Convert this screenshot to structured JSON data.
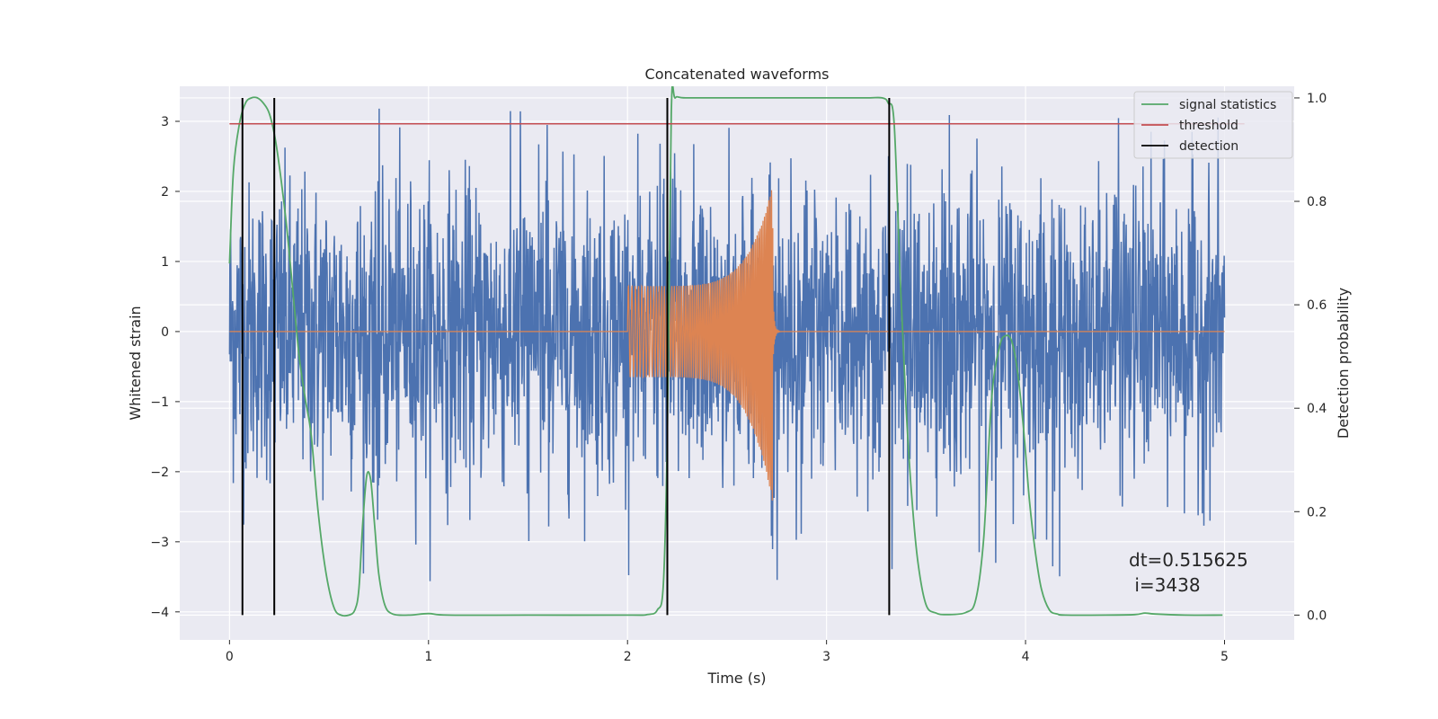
{
  "chart_data": {
    "type": "line",
    "title": "Concatenated waveforms",
    "xlabel": "Time (s)",
    "ylabel": "Whitened strain",
    "y2label": "Detection probability",
    "xlim": [
      -0.25,
      5.35
    ],
    "ylim": [
      -4.4,
      3.5
    ],
    "y2lim": [
      -0.048,
      1.0225
    ],
    "x_ticks": [
      0,
      1,
      2,
      3,
      4,
      5
    ],
    "x_tick_labels": [
      "0",
      "1",
      "2",
      "3",
      "4",
      "5"
    ],
    "y_ticks": [
      -4,
      -3,
      -2,
      -1,
      0,
      1,
      2,
      3
    ],
    "y_tick_labels": [
      "−4",
      "−3",
      "−2",
      "−1",
      "0",
      "1",
      "2",
      "3"
    ],
    "y2_ticks": [
      0.0,
      0.2,
      0.4,
      0.6,
      0.8,
      1.0
    ],
    "y2_tick_labels": [
      "0.0",
      "0.2",
      "0.4",
      "0.6",
      "0.8",
      "1.0"
    ],
    "grid": true,
    "legend_position": "top-right",
    "series": [
      {
        "name": "",
        "axis": "left",
        "kind": "noise",
        "color": "#4C72B0",
        "x_range": [
          0,
          5
        ],
        "amplitude_range": [
          -3.6,
          3.2
        ]
      },
      {
        "name": "",
        "axis": "left",
        "kind": "chirp",
        "color": "#DD8452",
        "x_range": [
          0,
          5
        ],
        "chirp_start": 2.0,
        "chirp_end": 2.73,
        "amplitude_start": 0.65,
        "amplitude_peak": 2.1,
        "amplitude_min_peak": -2.45
      },
      {
        "name": "signal statistics",
        "axis": "right",
        "color": "#55A868",
        "x": [
          0.0,
          0.02,
          0.05,
          0.08,
          0.11,
          0.14,
          0.17,
          0.2,
          0.23,
          0.26,
          0.29,
          0.32,
          0.35,
          0.38,
          0.41,
          0.44,
          0.47,
          0.5,
          0.53,
          0.56,
          0.6,
          0.63,
          0.65,
          0.67,
          0.69,
          0.71,
          0.73,
          0.75,
          0.78,
          0.82,
          0.9,
          1.0,
          1.1,
          1.5,
          2.0,
          2.1,
          2.15,
          2.18,
          2.2,
          2.22,
          2.24,
          2.3,
          2.6,
          3.0,
          3.2,
          3.28,
          3.31,
          3.34,
          3.37,
          3.4,
          3.43,
          3.46,
          3.5,
          3.55,
          3.6,
          3.7,
          3.75,
          3.79,
          3.83,
          3.87,
          3.9,
          3.93,
          3.96,
          3.99,
          4.02,
          4.05,
          4.08,
          4.12,
          4.16,
          4.2,
          4.4,
          4.55,
          4.6,
          4.65,
          4.8,
          4.99
        ],
        "values": [
          0.68,
          0.86,
          0.95,
          0.99,
          1.0,
          1.0,
          0.99,
          0.97,
          0.92,
          0.84,
          0.74,
          0.62,
          0.5,
          0.42,
          0.35,
          0.22,
          0.12,
          0.05,
          0.01,
          0.0,
          0.0,
          0.01,
          0.05,
          0.18,
          0.27,
          0.26,
          0.17,
          0.08,
          0.02,
          0.002,
          0.0,
          0.003,
          0.0,
          0.0,
          0.0,
          0.001,
          0.01,
          0.06,
          0.35,
          0.97,
          1.0,
          1.0,
          1.0,
          1.0,
          1.0,
          1.0,
          0.99,
          0.95,
          0.65,
          0.4,
          0.22,
          0.1,
          0.02,
          0.004,
          0.001,
          0.005,
          0.03,
          0.15,
          0.42,
          0.52,
          0.54,
          0.53,
          0.47,
          0.36,
          0.22,
          0.12,
          0.05,
          0.01,
          0.002,
          0.0,
          0.0,
          0.001,
          0.004,
          0.002,
          0.0,
          0.0
        ]
      },
      {
        "name": "threshold",
        "axis": "right",
        "color": "#C44E52",
        "x": [
          0,
          5.1
        ],
        "values": [
          0.95,
          0.95
        ]
      },
      {
        "name": "detection",
        "axis": "right",
        "color": "#000000",
        "kind": "vlines",
        "x": [
          0.065,
          0.225,
          2.2,
          3.315
        ],
        "range": [
          0,
          1
        ]
      }
    ],
    "annotation": "dt=0.515625\n i=3438"
  }
}
